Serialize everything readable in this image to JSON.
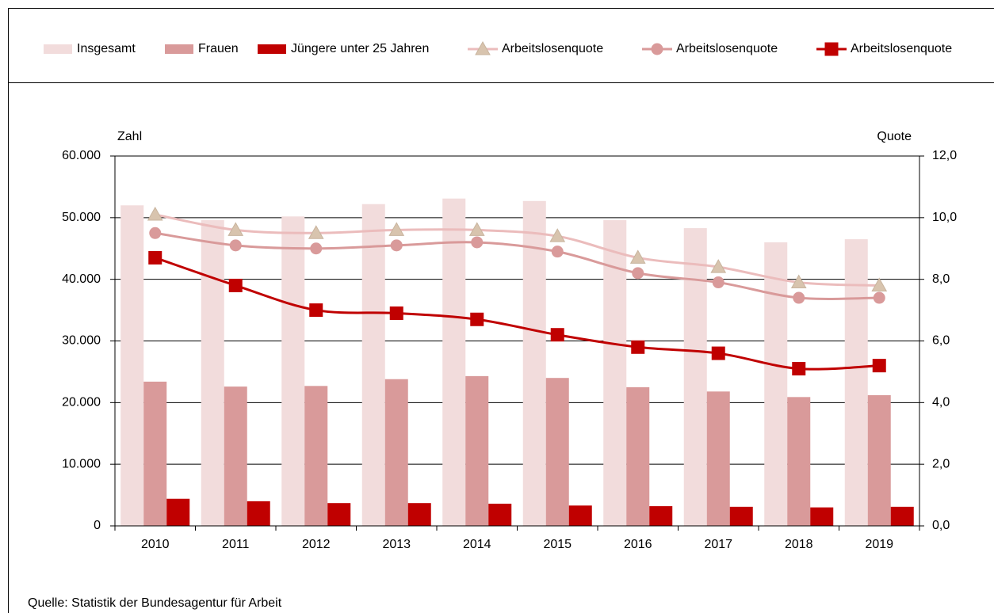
{
  "chart_data": {
    "type": "bar",
    "axis_label_left": "Zahl",
    "axis_label_right": "Quote",
    "source": "Quelle: Statistik der Bundesagentur für Arbeit",
    "categories": [
      "2010",
      "2011",
      "2012",
      "2013",
      "2014",
      "2015",
      "2016",
      "2017",
      "2018",
      "2019"
    ],
    "series": [
      {
        "name": "Insgesamt",
        "type": "bar",
        "color": "#f2dcdc",
        "values": [
          52000,
          49600,
          50200,
          52200,
          53100,
          52700,
          49600,
          48300,
          46000,
          46500
        ]
      },
      {
        "name": "Frauen",
        "type": "bar",
        "color": "#d99a9a",
        "values": [
          23400,
          22600,
          22700,
          23800,
          24300,
          24000,
          22500,
          21800,
          20900,
          21200
        ]
      },
      {
        "name": "Jüngere unter 25 Jahren",
        "type": "bar",
        "color": "#c00000",
        "values": [
          4400,
          4000,
          3700,
          3700,
          3600,
          3300,
          3200,
          3100,
          3000,
          3100
        ]
      },
      {
        "name": "Arbeitslosenquote",
        "type": "line",
        "axis": "y2",
        "marker": "triangle",
        "color": "#ebbcbc",
        "marker_color": "#d8c4ae",
        "values": [
          10.1,
          9.6,
          9.5,
          9.6,
          9.6,
          9.4,
          8.7,
          8.4,
          7.9,
          7.8
        ]
      },
      {
        "name": "Arbeitslosenquote",
        "type": "line",
        "axis": "y2",
        "marker": "circle",
        "color": "#d99a9a",
        "marker_color": "#d99a9a",
        "values": [
          9.5,
          9.1,
          9.0,
          9.1,
          9.2,
          8.9,
          8.2,
          7.9,
          7.4,
          7.4
        ]
      },
      {
        "name": "Arbeitslosenquote",
        "type": "line",
        "axis": "y2",
        "marker": "square",
        "color": "#c00000",
        "marker_color": "#c00000",
        "values": [
          8.7,
          7.8,
          7.0,
          6.9,
          6.7,
          6.2,
          5.8,
          5.6,
          5.1,
          5.2
        ]
      }
    ],
    "ylim": [
      0,
      60000
    ],
    "yticks": [
      0,
      {
        "value": 10000,
        "label": "10.000"
      },
      {
        "value": 20000,
        "label": "20.000"
      },
      {
        "value": 30000,
        "label": "30.000"
      },
      {
        "value": 40000,
        "label": "40.000"
      },
      {
        "value": 50000,
        "label": "50.000"
      },
      {
        "value": 60000,
        "label": "60.000"
      }
    ],
    "y2lim": [
      0,
      12
    ],
    "y2ticks": [
      {
        "value": 0,
        "label": "0,0"
      },
      {
        "value": 2,
        "label": "2,0"
      },
      {
        "value": 4,
        "label": "4,0"
      },
      {
        "value": 6,
        "label": "6,0"
      },
      {
        "value": 8,
        "label": "8,0"
      },
      {
        "value": 10,
        "label": "10,0"
      },
      {
        "value": 12,
        "label": "12,0"
      }
    ],
    "grid": true,
    "legend": "top"
  }
}
